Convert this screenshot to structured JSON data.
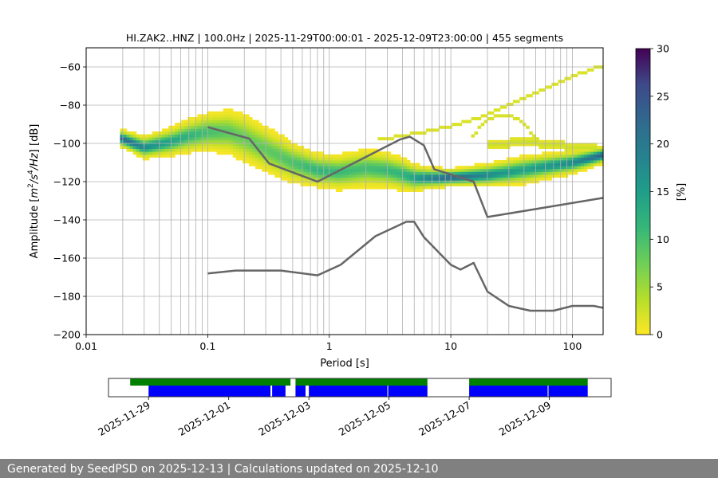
{
  "chart_data": {
    "type": "heatmap",
    "title": "HI.ZAK2..HNZ | 100.0Hz | 2025-11-29T00:00:01 - 2025-12-09T23:00:00 | 455 segments",
    "xlabel": "Period [s]",
    "ylabel_parts": [
      "Amplitude [",
      "m",
      "2",
      "/",
      "s",
      "4",
      "/",
      "Hz",
      "] [dB]"
    ],
    "x_scale": "log",
    "xlim": [
      0.01,
      179
    ],
    "ylim": [
      -200,
      -50
    ],
    "x_ticks": [
      {
        "value": 0.01,
        "label": "0.01"
      },
      {
        "value": 0.1,
        "label": "0.1"
      },
      {
        "value": 1,
        "label": "1"
      },
      {
        "value": 10,
        "label": "10"
      },
      {
        "value": 100,
        "label": "100"
      }
    ],
    "y_ticks": [
      {
        "value": -60,
        "label": "−60"
      },
      {
        "value": -80,
        "label": "−80"
      },
      {
        "value": -100,
        "label": "−100"
      },
      {
        "value": -120,
        "label": "−120"
      },
      {
        "value": -140,
        "label": "−140"
      },
      {
        "value": -160,
        "label": "−160"
      },
      {
        "value": -180,
        "label": "−180"
      },
      {
        "value": -200,
        "label": "−200"
      }
    ],
    "grid": true,
    "period_gridlines": [
      0.02,
      0.03,
      0.04,
      0.05,
      0.06,
      0.07,
      0.08,
      0.09,
      0.2,
      0.3,
      0.4,
      0.5,
      0.6,
      0.7,
      0.8,
      0.9,
      2,
      3,
      4,
      5,
      6,
      7,
      8,
      9,
      20,
      30,
      40,
      50,
      60,
      70,
      80,
      90
    ],
    "colorbar": {
      "label": "[%]",
      "range": [
        0,
        30
      ],
      "colormap": "viridis_r",
      "ticks": [
        {
          "value": 0,
          "label": "0"
        },
        {
          "value": 5,
          "label": "5"
        },
        {
          "value": 10,
          "label": "10"
        },
        {
          "value": 15,
          "label": "15"
        },
        {
          "value": 20,
          "label": "20"
        },
        {
          "value": 25,
          "label": "25"
        },
        {
          "value": 30,
          "label": "30"
        }
      ]
    },
    "density": {
      "period_range": [
        0.019,
        179
      ],
      "mode_db": [
        [
          0.019,
          -97
        ],
        [
          0.03,
          -102
        ],
        [
          0.05,
          -99
        ],
        [
          0.07,
          -96
        ],
        [
          0.1,
          -94
        ],
        [
          0.15,
          -94
        ],
        [
          0.2,
          -97
        ],
        [
          0.3,
          -103
        ],
        [
          0.5,
          -110
        ],
        [
          0.8,
          -114
        ],
        [
          1.2,
          -115
        ],
        [
          2,
          -113
        ],
        [
          3,
          -114
        ],
        [
          4,
          -116
        ],
        [
          5,
          -118
        ],
        [
          8,
          -118
        ],
        [
          12,
          -117.5
        ],
        [
          20,
          -116.5
        ],
        [
          30,
          -115
        ],
        [
          60,
          -112
        ],
        [
          100,
          -110
        ],
        [
          179,
          -106
        ]
      ],
      "spread_db": [
        [
          0.019,
          3
        ],
        [
          0.05,
          5
        ],
        [
          0.1,
          7
        ],
        [
          0.2,
          9
        ],
        [
          0.4,
          8
        ],
        [
          0.8,
          6
        ],
        [
          2,
          7
        ],
        [
          4,
          6
        ],
        [
          6,
          4
        ],
        [
          10,
          3
        ],
        [
          20,
          4
        ],
        [
          40,
          5
        ],
        [
          100,
          4
        ],
        [
          179,
          3
        ]
      ],
      "secondary_branch_db": [
        [
          2.5,
          -98
        ],
        [
          4,
          -96
        ],
        [
          6,
          -94
        ],
        [
          10,
          -91
        ],
        [
          20,
          -85
        ],
        [
          40,
          -76
        ],
        [
          80,
          -68
        ],
        [
          120,
          -63
        ],
        [
          179,
          -59
        ]
      ],
      "arc_db": [
        [
          15,
          -96
        ],
        [
          20,
          -87
        ],
        [
          28,
          -85
        ],
        [
          36,
          -87
        ],
        [
          50,
          -97
        ],
        [
          60,
          -104
        ]
      ],
      "upper_band_db": [
        [
          20,
          -101
        ],
        [
          40,
          -99
        ],
        [
          80,
          -101
        ],
        [
          179,
          -103
        ]
      ]
    },
    "series": [
      {
        "name_hidden": "high-noise",
        "color": "#666666",
        "points": [
          [
            0.1,
            -91.5
          ],
          [
            0.22,
            -97.5
          ],
          [
            0.32,
            -110.5
          ],
          [
            0.8,
            -120
          ],
          [
            3.8,
            -98
          ],
          [
            4.6,
            -96.5
          ],
          [
            6.0,
            -101
          ],
          [
            7.3,
            -113.5
          ],
          [
            15.4,
            -120
          ],
          [
            20,
            -138.5
          ],
          [
            179,
            -128.5
          ]
        ]
      },
      {
        "name_hidden": "low-noise",
        "color": "#666666",
        "points": [
          [
            0.1,
            -168
          ],
          [
            0.17,
            -166.5
          ],
          [
            0.4,
            -166.5
          ],
          [
            0.8,
            -169
          ],
          [
            1.24,
            -163.5
          ],
          [
            2.4,
            -148.5
          ],
          [
            4.3,
            -141
          ],
          [
            5.0,
            -141
          ],
          [
            6.0,
            -149
          ],
          [
            10,
            -163.5
          ],
          [
            12,
            -166
          ],
          [
            15.4,
            -162.5
          ],
          [
            20,
            -177.5
          ],
          [
            30,
            -185
          ],
          [
            45,
            -187.5
          ],
          [
            70,
            -187.5
          ],
          [
            100,
            -185
          ],
          [
            150,
            -185
          ],
          [
            179,
            -186
          ]
        ]
      }
    ],
    "availability": {
      "time_ticks": [
        "2025-11-29",
        "2025-12-01",
        "2025-12-03",
        "2025-12-05",
        "2025-12-07",
        "2025-12-09"
      ],
      "time_range": [
        "2025-11-28T00:00:00",
        "2025-12-10T13:00:00"
      ],
      "data_segments": [
        [
          "2025-11-28T13:00:00",
          "2025-12-02T13:00:00"
        ],
        [
          "2025-12-02T16:00:00",
          "2025-12-05T23:00:00"
        ],
        [
          "2025-12-07T00:00:00",
          "2025-12-09T23:00:00"
        ]
      ],
      "psd_segments": [
        [
          "2025-11-29T00:00:00",
          "2025-12-02T01:00:00"
        ],
        [
          "2025-12-02T02:00:00",
          "2025-12-02T10:00:00"
        ],
        [
          "2025-12-02T16:00:00",
          "2025-12-02T22:00:00"
        ],
        [
          "2025-12-03T00:00:00",
          "2025-12-04T23:00:00"
        ],
        [
          "2025-12-04T23:30:00",
          "2025-12-05T23:00:00"
        ],
        [
          "2025-12-07T00:00:00",
          "2025-12-08T23:00:00"
        ],
        [
          "2025-12-08T23:30:00",
          "2025-12-09T23:00:00"
        ]
      ],
      "data_color": "#008000",
      "psd_color": "#0000ff"
    }
  },
  "footer": {
    "text": "Generated by SeedPSD on 2025-12-13 | Calculations updated on 2025-12-10"
  }
}
